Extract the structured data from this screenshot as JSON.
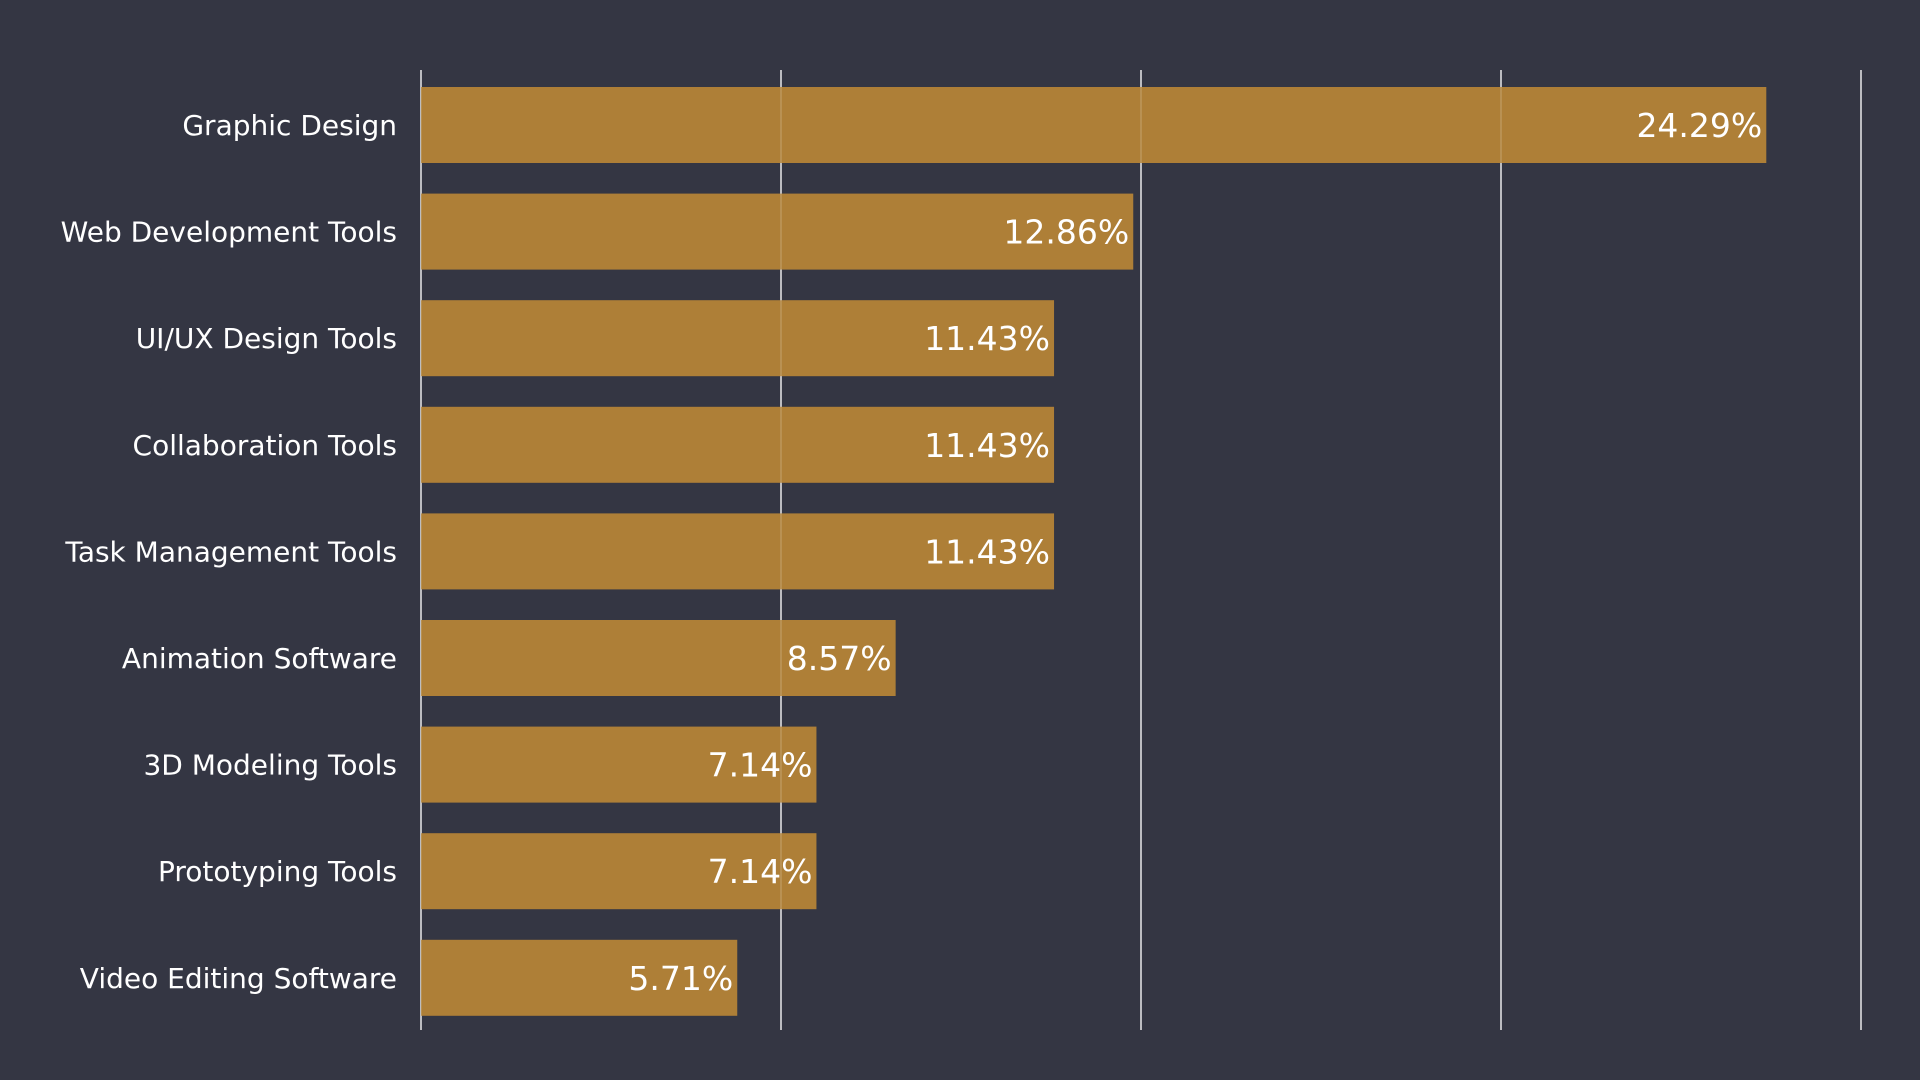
{
  "chart_data": {
    "type": "bar",
    "orientation": "horizontal",
    "title": "",
    "xlabel": "",
    "ylabel": "",
    "categories": [
      "Graphic Design",
      "Web Development Tools",
      "UI/UX Design Tools",
      "Collaboration Tools",
      "Task Management Tools",
      "Animation Software",
      "3D Modeling Tools",
      "Prototyping Tools",
      "Video Editing Software"
    ],
    "values": [
      24.29,
      12.86,
      11.43,
      11.43,
      11.43,
      8.57,
      7.14,
      7.14,
      5.71
    ],
    "value_labels": [
      "24.29%",
      "12.86%",
      "11.43%",
      "11.43%",
      "11.43%",
      "8.57%",
      "7.14%",
      "7.14%",
      "5.71%"
    ],
    "xlim": [
      0,
      26
    ],
    "gridlines_x": [
      0,
      6.5,
      13,
      19.5,
      26
    ],
    "grid": true,
    "colors": {
      "background": "#343643",
      "bar": "#ae7f37",
      "text": "#ffffff",
      "grid": "#ffffff"
    }
  }
}
